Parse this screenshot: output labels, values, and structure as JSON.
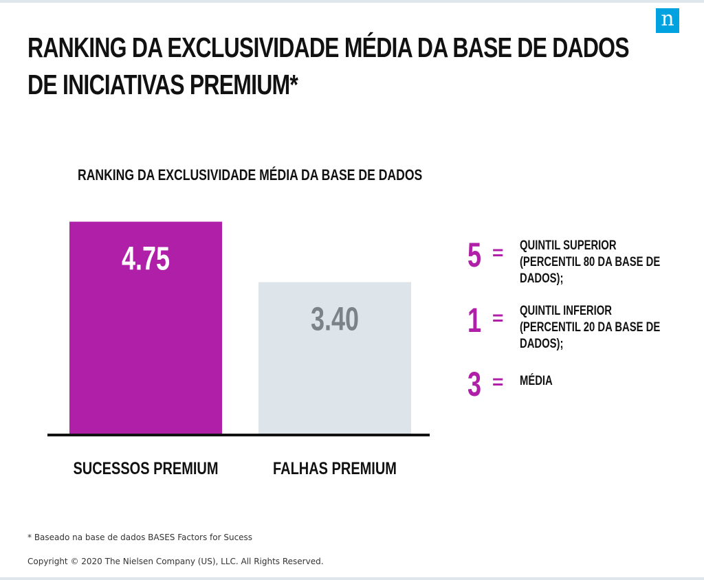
{
  "title_lines": [
    "RANKING DA EXCLUSIVIDADE MÉDIA DA BASE DE DADOS",
    "DE INICIATIVAS PREMIUM*"
  ],
  "logo": {
    "glyph": "n",
    "color": "#00a3e0"
  },
  "colors": {
    "accent": "#b01fa8",
    "bar_secondary": "#dde5ea",
    "bar_secondary_text": "#7b8288",
    "axis": "#111111"
  },
  "legend": [
    {
      "number": "5",
      "equals": "=",
      "text": "QUINTIL SUPERIOR (PERCENTIL 80 DA BASE DE DADOS);"
    },
    {
      "number": "1",
      "equals": "=",
      "text": "QUINTIL INFERIOR (PERCENTIL 20 DA BASE DE DADOS);"
    },
    {
      "number": "3",
      "equals": "=",
      "text": "MÉDIA"
    }
  ],
  "footnote": "* Baseado na base de dados BASES Factors for Sucess",
  "copyright": "Copyright © 2020 The Nielsen Company (US), LLC. All Rights Reserved.",
  "chart_data": {
    "type": "bar",
    "title": "RANKING DA EXCLUSIVIDADE MÉDIA DA BASE DE DADOS",
    "categories": [
      "SUCESSOS PREMIUM",
      "FALHAS PREMIUM"
    ],
    "values": [
      4.75,
      3.4
    ],
    "value_labels": [
      "4.75",
      "3.40"
    ],
    "bar_colors": [
      "#b01fa8",
      "#dde5ea"
    ],
    "value_label_colors": [
      "#ffffff",
      "#7b8288"
    ],
    "ylim": [
      0,
      5.45
    ],
    "grid": false,
    "xlabel": "",
    "ylabel": ""
  }
}
